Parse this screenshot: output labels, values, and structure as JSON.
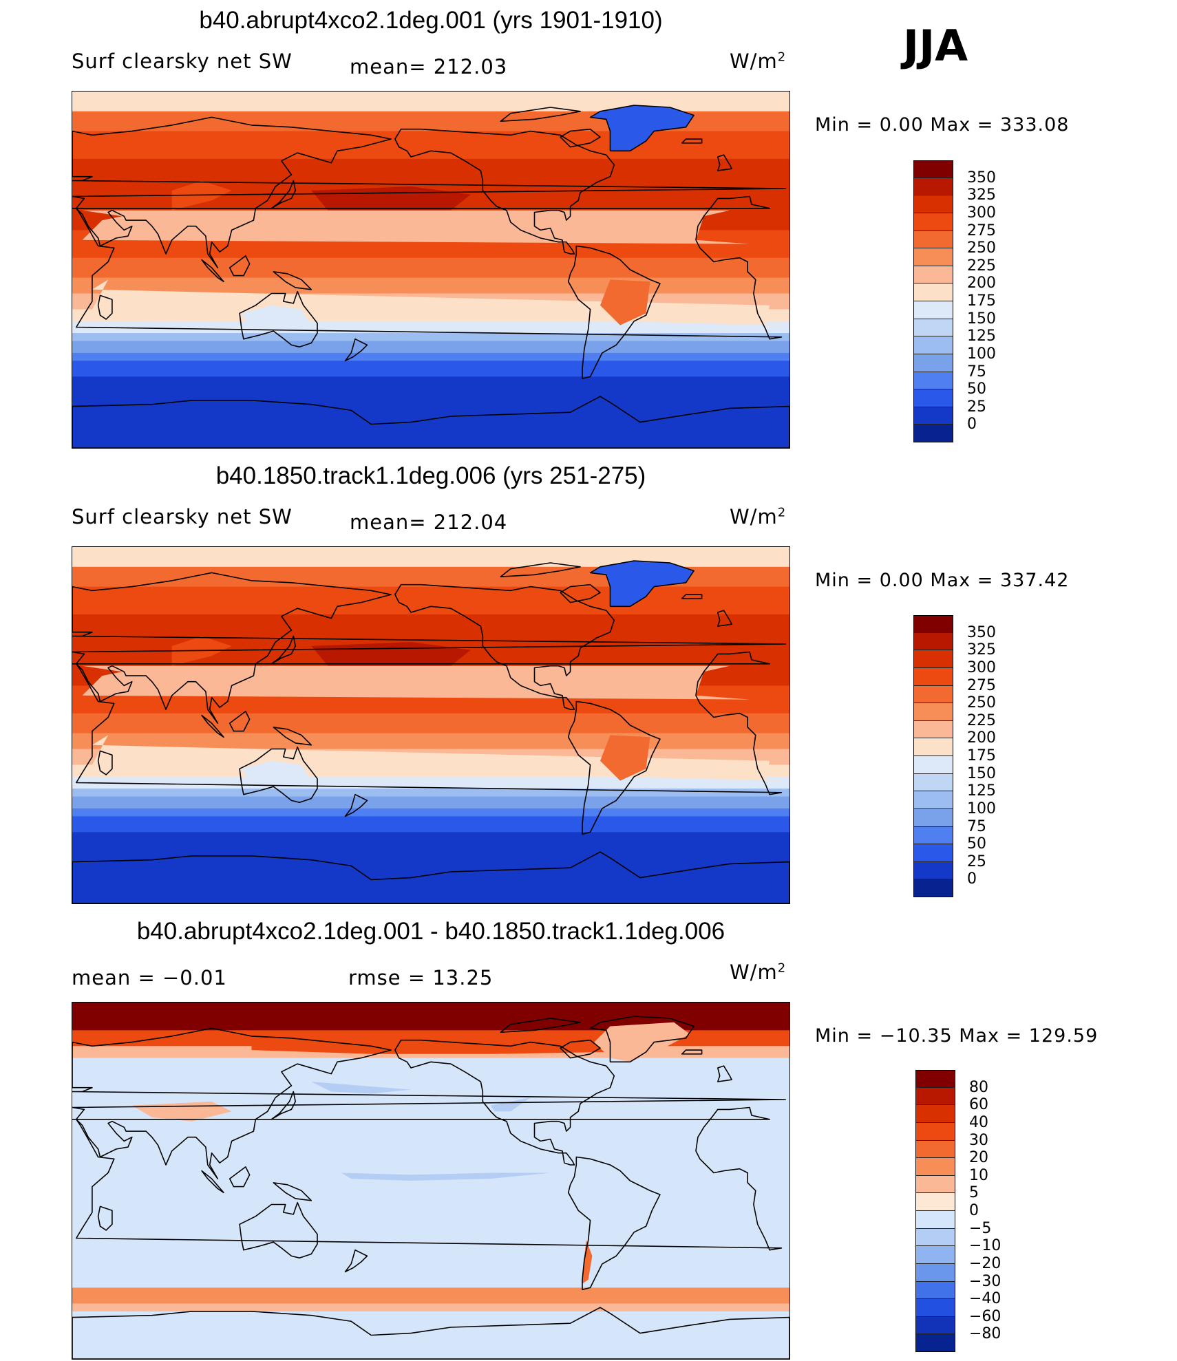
{
  "season_label": "JJA",
  "panels": [
    {
      "title": "b40.abrupt4xco2.1deg.001 (yrs 1901-1910)",
      "left_label": "Surf clearsky net SW",
      "center_label": "mean= 212.03",
      "units_label": "W/m",
      "units_exponent": "2",
      "minmax": "Min =    0.00 Max  =  333.08",
      "colorbar": {
        "ticks": [
          "350",
          "325",
          "300",
          "275",
          "250",
          "225",
          "200",
          "175",
          "150",
          "125",
          "100",
          "75",
          "50",
          "25",
          "0"
        ],
        "colors": [
          "#800000",
          "#b81800",
          "#d83000",
          "#ec4a10",
          "#f26a30",
          "#f78e58",
          "#fbb896",
          "#fde0c8",
          "#dde9f8",
          "#bfd6f5",
          "#9cbdf0",
          "#7aa2eb",
          "#4f7ff0",
          "#2a58e8",
          "#1438c8",
          "#06238f"
        ]
      },
      "map_kind": "field"
    },
    {
      "title": "b40.1850.track1.1deg.006 (yrs 251-275)",
      "left_label": "Surf clearsky net SW",
      "center_label": "mean= 212.04",
      "units_label": "W/m",
      "units_exponent": "2",
      "minmax": "Min =    0.00 Max  =  337.42",
      "colorbar": {
        "ticks": [
          "350",
          "325",
          "300",
          "275",
          "250",
          "225",
          "200",
          "175",
          "150",
          "125",
          "100",
          "75",
          "50",
          "25",
          "0"
        ],
        "colors": [
          "#800000",
          "#b81800",
          "#d83000",
          "#ec4a10",
          "#f26a30",
          "#f78e58",
          "#fbb896",
          "#fde0c8",
          "#dde9f8",
          "#bfd6f5",
          "#9cbdf0",
          "#7aa2eb",
          "#4f7ff0",
          "#2a58e8",
          "#1438c8",
          "#06238f"
        ]
      },
      "map_kind": "field"
    },
    {
      "title": "b40.abrupt4xco2.1deg.001 - b40.1850.track1.1deg.006",
      "left_label": "mean =   −0.01",
      "center_label": "rmse =    13.25",
      "units_label": "W/m",
      "units_exponent": "2",
      "minmax": "Min  = −10.35 Max  =  129.59",
      "colorbar": {
        "ticks": [
          "80",
          "60",
          "40",
          "30",
          "20",
          "10",
          "5",
          "0",
          "−5",
          "−10",
          "−20",
          "−30",
          "−40",
          "−60",
          "−80"
        ],
        "colors": [
          "#800000",
          "#b81800",
          "#d83000",
          "#ec4a10",
          "#f26a30",
          "#f78e58",
          "#fbb896",
          "#fde8d6",
          "#d6e6fa",
          "#b4cdf5",
          "#90b4f0",
          "#6a96ec",
          "#4272ea",
          "#2250e0",
          "#1232b8",
          "#06238f"
        ]
      },
      "map_kind": "difference"
    }
  ],
  "chart_data": [
    {
      "type": "heatmap",
      "title": "b40.abrupt4xco2.1deg.001 (yrs 1901-1910)",
      "variable": "Surf clearsky net SW",
      "units": "W/m2",
      "mean": 212.03,
      "min": 0.0,
      "max": 333.08,
      "levels": [
        0,
        25,
        50,
        75,
        100,
        125,
        150,
        175,
        200,
        225,
        250,
        275,
        300,
        325,
        350
      ]
    },
    {
      "type": "heatmap",
      "title": "b40.1850.track1.1deg.006 (yrs 251-275)",
      "variable": "Surf clearsky net SW",
      "units": "W/m2",
      "mean": 212.04,
      "min": 0.0,
      "max": 337.42,
      "levels": [
        0,
        25,
        50,
        75,
        100,
        125,
        150,
        175,
        200,
        225,
        250,
        275,
        300,
        325,
        350
      ]
    },
    {
      "type": "heatmap",
      "title": "b40.abrupt4xco2.1deg.001 - b40.1850.track1.1deg.006",
      "units": "W/m2",
      "mean": -0.01,
      "rmse": 13.25,
      "min": -10.35,
      "max": 129.59,
      "levels": [
        -80,
        -60,
        -40,
        -30,
        -20,
        -10,
        -5,
        0,
        5,
        10,
        20,
        30,
        40,
        60,
        80
      ]
    }
  ]
}
